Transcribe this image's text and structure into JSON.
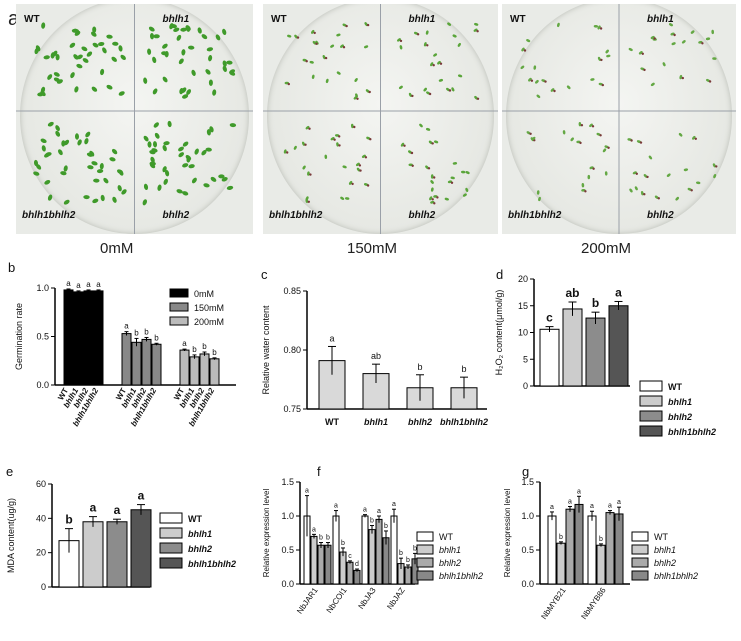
{
  "panel_a": {
    "letter": "a",
    "photos": [
      {
        "labels": {
          "tl": "WT",
          "tr": "bhlh1",
          "bl": "bhlh1bhlh2",
          "br": "bhlh2"
        },
        "condition": "0mM",
        "seedling_color": "#3f9a2a",
        "density": 1.0
      },
      {
        "labels": {
          "tl": "WT",
          "tr": "bhlh1",
          "bl": "bhlh1bhlh2",
          "br": "bhlh2"
        },
        "condition": "150mM",
        "seedling_color": "#5aa53a",
        "density": 0.55
      },
      {
        "labels": {
          "tl": "WT",
          "tr": "bhlh1",
          "bl": "bhlh1bhlh2",
          "br": "bhlh2"
        },
        "condition": "200mM",
        "seedling_color": "#64a844",
        "density": 0.45
      }
    ]
  },
  "chart_data": [
    {
      "id": "b",
      "type": "bar",
      "ylabel": "Germination rate",
      "ylim": [
        0,
        1.0
      ],
      "yticks": [
        "0.0",
        "0.5",
        "1.0"
      ],
      "groups": [
        "0mM",
        "150mM",
        "200mM"
      ],
      "categories": [
        "WT",
        "bhlh1",
        "bhlh2",
        "bhlh1bhlh2"
      ],
      "series": [
        {
          "name": "0mM",
          "color": "#000000",
          "values": [
            0.98,
            0.96,
            0.97,
            0.97
          ],
          "err": [
            0.01,
            0.01,
            0.01,
            0.01
          ],
          "letters": [
            "a",
            "a",
            "a",
            "a"
          ]
        },
        {
          "name": "150mM",
          "color": "#888888",
          "values": [
            0.53,
            0.44,
            0.47,
            0.42
          ],
          "err": [
            0.02,
            0.04,
            0.02,
            0.01
          ],
          "letters": [
            "a",
            "b",
            "b",
            "b"
          ]
        },
        {
          "name": "200mM",
          "color": "#bbbbbb",
          "values": [
            0.36,
            0.29,
            0.32,
            0.27
          ],
          "err": [
            0.01,
            0.02,
            0.02,
            0.01
          ],
          "letters": [
            "a",
            "b",
            "b",
            "b"
          ]
        }
      ],
      "legend": "top-right"
    },
    {
      "id": "c",
      "type": "bar",
      "ylabel": "Relative water content",
      "ylim": [
        0.75,
        0.85
      ],
      "yticks": [
        "0.75",
        "0.80",
        "0.85"
      ],
      "categories": [
        "WT",
        "bhlh1",
        "bhlh2",
        "bhlh1bhlh2"
      ],
      "values": [
        0.791,
        0.78,
        0.768,
        0.768
      ],
      "err": [
        0.012,
        0.008,
        0.011,
        0.009
      ],
      "letters": [
        "a",
        "ab",
        "b",
        "b"
      ],
      "color": "#d9d9d9"
    },
    {
      "id": "d",
      "type": "bar",
      "ylabel": "H₂O₂ content(μmol/g)",
      "ylim": [
        0,
        20
      ],
      "yticks": [
        "0",
        "5",
        "10",
        "15",
        "20"
      ],
      "categories": [
        "WT",
        "bhlh1",
        "bhlh2",
        "bhlh1bhlh2"
      ],
      "values": [
        10.6,
        14.4,
        12.7,
        15.0
      ],
      "err": [
        0.5,
        1.3,
        1.1,
        0.8
      ],
      "letters": [
        "c",
        "ab",
        "b",
        "a"
      ],
      "colors": [
        "#ffffff",
        "#cccccc",
        "#8c8c8c",
        "#555555"
      ],
      "legend": [
        "WT",
        "bhlh1",
        "bhlh2",
        "bhlh1bhlh2"
      ]
    },
    {
      "id": "e",
      "type": "bar",
      "ylabel": "MDA content(ug/g)",
      "ylim": [
        0,
        60
      ],
      "yticks": [
        "0",
        "20",
        "40",
        "60"
      ],
      "categories": [
        "WT",
        "bhlh1",
        "bhlh2",
        "bhlh1bhlh2"
      ],
      "values": [
        27,
        38,
        38,
        45
      ],
      "err": [
        7,
        3,
        1.5,
        3
      ],
      "letters": [
        "b",
        "a",
        "a",
        "a"
      ],
      "colors": [
        "#ffffff",
        "#cccccc",
        "#8c8c8c",
        "#555555"
      ],
      "legend": [
        "WT",
        "bhlh1",
        "bhlh2",
        "bhlh1bhlh2"
      ]
    },
    {
      "id": "f",
      "type": "bar",
      "ylabel": "Relative expression level",
      "ylim": [
        0,
        1.5
      ],
      "yticks": [
        "0.0",
        "0.5",
        "1.0",
        "1.5"
      ],
      "categories": [
        "NbJAR1",
        "NbCOI1",
        "NbJA3",
        "NbJAZ"
      ],
      "series": [
        {
          "name": "WT",
          "color": "#ffffff",
          "values": [
            1.0,
            1.0,
            1.0,
            1.0
          ],
          "err": [
            0.3,
            0.08,
            0.02,
            0.1
          ],
          "letters": [
            "a",
            "a",
            "a",
            "a"
          ]
        },
        {
          "name": "bhlh1",
          "color": "#cccccc",
          "values": [
            0.7,
            0.47,
            0.8,
            0.3
          ],
          "err": [
            0.03,
            0.06,
            0.06,
            0.08
          ],
          "letters": [
            "a",
            "b",
            "b",
            "b"
          ]
        },
        {
          "name": "bhlh2",
          "color": "#aaaaaa",
          "values": [
            0.57,
            0.32,
            0.95,
            0.25
          ],
          "err": [
            0.04,
            0.02,
            0.05,
            0.03
          ],
          "letters": [
            "b",
            "c",
            "a",
            "b"
          ]
        },
        {
          "name": "bhlh1bhlh2",
          "color": "#888888",
          "values": [
            0.57,
            0.2,
            0.68,
            0.37
          ],
          "err": [
            0.04,
            0.02,
            0.1,
            0.08
          ],
          "letters": [
            "b",
            "d",
            "b",
            "b"
          ]
        }
      ],
      "legend": "right"
    },
    {
      "id": "g",
      "type": "bar",
      "ylabel": "Relative expression level",
      "ylim": [
        0,
        1.5
      ],
      "yticks": [
        "0.0",
        "0.5",
        "1.0",
        "1.5"
      ],
      "categories": [
        "NbMYB21",
        "NbMYB86"
      ],
      "series": [
        {
          "name": "WT",
          "color": "#ffffff",
          "values": [
            1.0,
            1.0
          ],
          "err": [
            0.06,
            0.07
          ],
          "letters": [
            "a",
            "a"
          ]
        },
        {
          "name": "bhlh1",
          "color": "#cccccc",
          "values": [
            0.6,
            0.57
          ],
          "err": [
            0.02,
            0.02
          ],
          "letters": [
            "b",
            "b"
          ]
        },
        {
          "name": "bhlh2",
          "color": "#aaaaaa",
          "values": [
            1.1,
            1.05
          ],
          "err": [
            0.04,
            0.03
          ],
          "letters": [
            "a",
            "a"
          ]
        },
        {
          "name": "bhlh1bhlh2",
          "color": "#888888",
          "values": [
            1.17,
            1.03
          ],
          "err": [
            0.12,
            0.1
          ],
          "letters": [
            "a",
            "a"
          ]
        }
      ],
      "legend": "right"
    }
  ]
}
